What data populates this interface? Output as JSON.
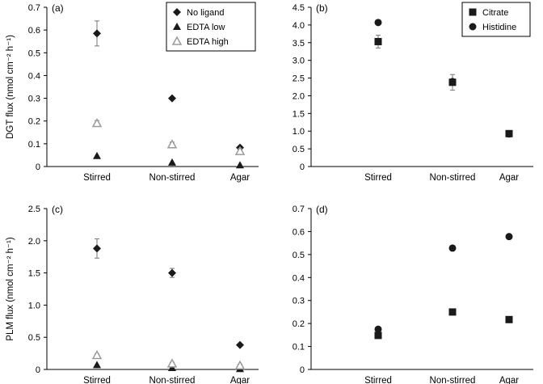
{
  "chart_data": [
    {
      "panel_label": "(a)",
      "type": "scatter",
      "categories": [
        "Stirred",
        "Non-stirred",
        "Agar"
      ],
      "ylabel": "DGT flux (nmol cm⁻² h⁻¹)",
      "ylim": [
        0,
        0.7
      ],
      "yticks": [
        "0",
        "0.1",
        "0.2",
        "0.3",
        "0.4",
        "0.5",
        "0.6",
        "0.7"
      ],
      "legend": "top-right",
      "series": [
        {
          "name": "No ligand",
          "marker": "diamond",
          "color": "#1a1a1a",
          "values": [
            0.585,
            0.3,
            0.083
          ],
          "errors": [
            0.055,
            0,
            0.008
          ]
        },
        {
          "name": "EDTA low",
          "marker": "triangle",
          "color": "#1a1a1a",
          "values": [
            0.047,
            0.018,
            0.006
          ],
          "errors": [
            0,
            0,
            0
          ]
        },
        {
          "name": "EDTA high",
          "marker": "triangle-open",
          "color": "#9a9a9a",
          "values": [
            0.19,
            0.097,
            0.067
          ],
          "errors": [
            0.012,
            0.01,
            0.012
          ]
        }
      ]
    },
    {
      "panel_label": "(b)",
      "type": "scatter",
      "categories": [
        "Stirred",
        "Non-stirred",
        "Agar"
      ],
      "ylabel": "",
      "ylim": [
        0,
        4.5
      ],
      "yticks": [
        "0",
        "0.5",
        "1.0",
        "1.5",
        "2.0",
        "2.5",
        "3.0",
        "3.5",
        "4.0",
        "4.5"
      ],
      "legend": "top-right",
      "series": [
        {
          "name": "Citrate",
          "marker": "square",
          "color": "#1a1a1a",
          "values": [
            3.53,
            2.38,
            0.93
          ],
          "errors": [
            0.18,
            0.22,
            0.08
          ]
        },
        {
          "name": "Histidine",
          "marker": "circle",
          "color": "#1a1a1a",
          "values": [
            4.07,
            2.4,
            0.92
          ],
          "errors": [
            0,
            0,
            0
          ]
        }
      ]
    },
    {
      "panel_label": "(c)",
      "type": "scatter",
      "categories": [
        "Stirred",
        "Non-stirred",
        "Agar"
      ],
      "ylabel": "PLM flux (nmol cm⁻² h⁻¹)",
      "ylim": [
        0,
        2.5
      ],
      "yticks": [
        "0",
        "0.5",
        "1.0",
        "1.5",
        "2.0",
        "2.5"
      ],
      "legend": "",
      "series": [
        {
          "name": "No ligand",
          "marker": "diamond",
          "color": "#1a1a1a",
          "values": [
            1.88,
            1.5,
            0.38
          ],
          "errors": [
            0.15,
            0.07,
            0
          ]
        },
        {
          "name": "EDTA low",
          "marker": "triangle",
          "color": "#1a1a1a",
          "values": [
            0.07,
            0.025,
            0.01
          ],
          "errors": [
            0,
            0,
            0
          ]
        },
        {
          "name": "EDTA high",
          "marker": "triangle-open",
          "color": "#9a9a9a",
          "values": [
            0.22,
            0.09,
            0.06
          ],
          "errors": [
            0.02,
            0.02,
            0.02
          ]
        }
      ]
    },
    {
      "panel_label": "(d)",
      "type": "scatter",
      "categories": [
        "Stirred",
        "Non-stirred",
        "Agar"
      ],
      "ylabel": "",
      "ylim": [
        0,
        0.7
      ],
      "yticks": [
        "0",
        "0.1",
        "0.2",
        "0.3",
        "0.4",
        "0.5",
        "0.6",
        "0.7"
      ],
      "legend": "",
      "series": [
        {
          "name": "Citrate",
          "marker": "square",
          "color": "#1a1a1a",
          "values": [
            0.148,
            0.25,
            0.217
          ],
          "errors": [
            0,
            0,
            0
          ]
        },
        {
          "name": "Histidine",
          "marker": "circle",
          "color": "#1a1a1a",
          "values": [
            0.175,
            0.528,
            0.578
          ],
          "errors": [
            0,
            0,
            0
          ]
        }
      ]
    }
  ]
}
